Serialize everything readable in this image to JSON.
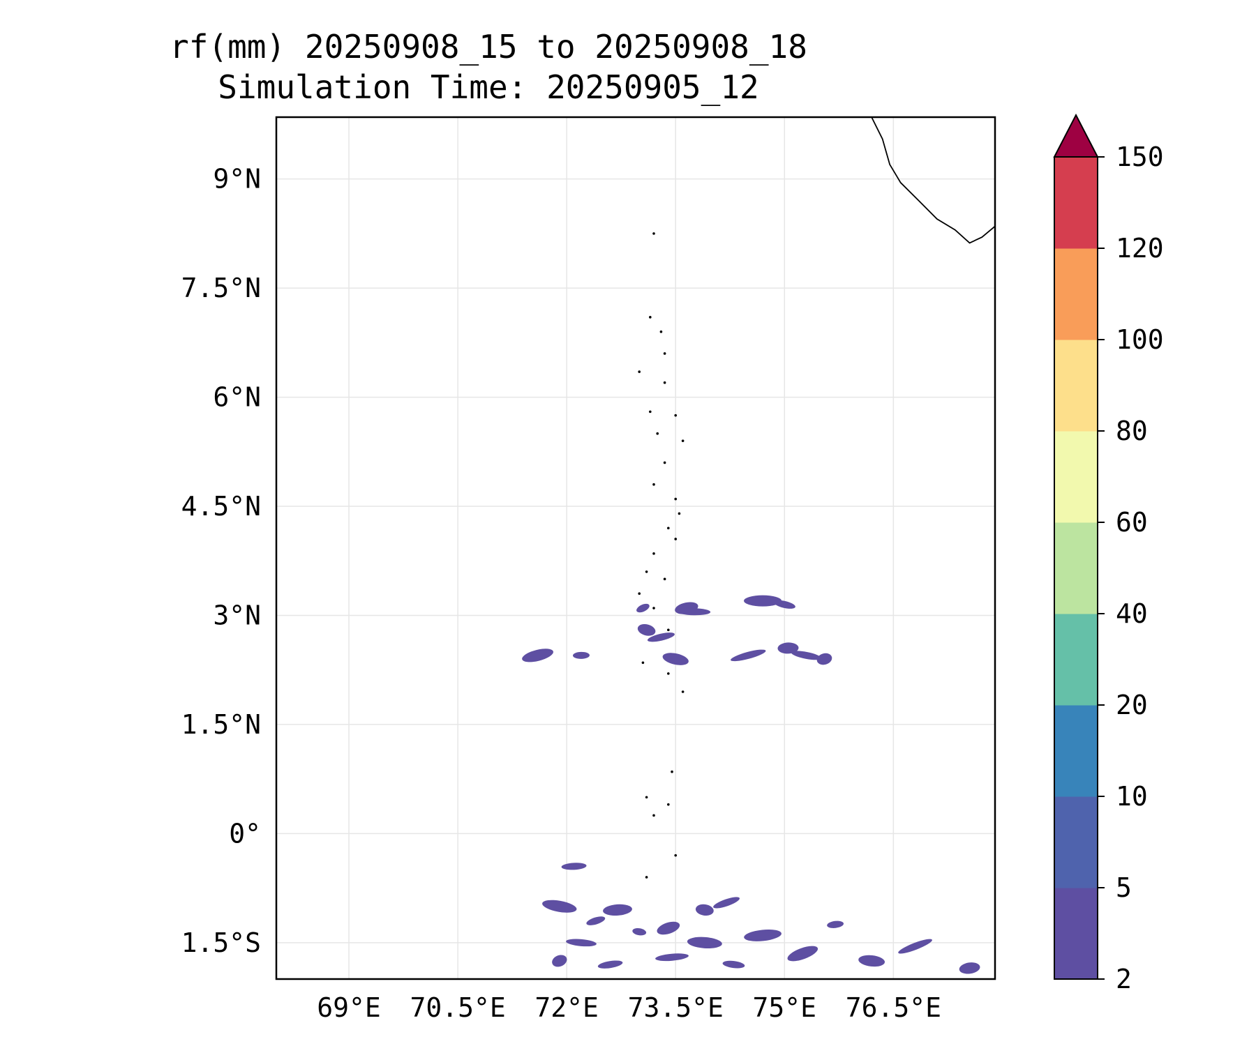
{
  "figure": {
    "title_line1": "rf(mm) 20250908_15 to 20250908_18",
    "title_line2": "Simulation Time: 20250905_12"
  },
  "map": {
    "extent": {
      "lon_min": 68.0,
      "lon_max": 77.9,
      "lat_min": -2.0,
      "lat_max": 9.85
    },
    "gridlines": true,
    "coastline_color": "#000000",
    "x_ticks": [
      {
        "value": 69.0,
        "label": "69°E"
      },
      {
        "value": 70.5,
        "label": "70.5°E"
      },
      {
        "value": 72.0,
        "label": "72°E"
      },
      {
        "value": 73.5,
        "label": "73.5°E"
      },
      {
        "value": 75.0,
        "label": "75°E"
      },
      {
        "value": 76.5,
        "label": "76.5°E"
      }
    ],
    "y_ticks": [
      {
        "value": 9.0,
        "label": "9°N"
      },
      {
        "value": 7.5,
        "label": "7.5°N"
      },
      {
        "value": 6.0,
        "label": "6°N"
      },
      {
        "value": 4.5,
        "label": "4.5°N"
      },
      {
        "value": 3.0,
        "label": "3°N"
      },
      {
        "value": 1.5,
        "label": "1.5°N"
      },
      {
        "value": 0.0,
        "label": "0°"
      },
      {
        "value": -1.5,
        "label": "1.5°S"
      }
    ],
    "india_coast": [
      [
        76.2,
        9.85
      ],
      [
        76.35,
        9.55
      ],
      [
        76.45,
        9.2
      ],
      [
        76.6,
        8.95
      ],
      [
        76.85,
        8.7
      ],
      [
        77.1,
        8.45
      ],
      [
        77.35,
        8.3
      ],
      [
        77.55,
        8.12
      ],
      [
        77.72,
        8.2
      ],
      [
        77.9,
        8.35
      ]
    ],
    "maldives_atolls": [
      [
        73.2,
        8.25
      ],
      [
        73.15,
        7.1
      ],
      [
        73.3,
        6.9
      ],
      [
        73.35,
        6.6
      ],
      [
        73.0,
        6.35
      ],
      [
        73.35,
        6.2
      ],
      [
        73.15,
        5.8
      ],
      [
        73.5,
        5.75
      ],
      [
        73.25,
        5.5
      ],
      [
        73.6,
        5.4
      ],
      [
        73.35,
        5.1
      ],
      [
        73.2,
        4.8
      ],
      [
        73.5,
        4.6
      ],
      [
        73.55,
        4.4
      ],
      [
        73.4,
        4.2
      ],
      [
        73.5,
        4.05
      ],
      [
        73.2,
        3.85
      ],
      [
        73.1,
        3.6
      ],
      [
        73.35,
        3.5
      ],
      [
        73.0,
        3.3
      ],
      [
        73.2,
        3.1
      ],
      [
        73.4,
        2.8
      ],
      [
        73.05,
        2.35
      ],
      [
        73.4,
        2.2
      ],
      [
        73.6,
        1.95
      ],
      [
        73.45,
        0.85
      ],
      [
        73.1,
        0.5
      ],
      [
        73.4,
        0.4
      ],
      [
        73.2,
        0.25
      ],
      [
        73.5,
        -0.3
      ],
      [
        73.1,
        -0.6
      ]
    ],
    "rain_patches": [
      [
        73.05,
        3.1
      ],
      [
        73.65,
        3.1
      ],
      [
        73.75,
        3.05
      ],
      [
        73.1,
        2.8
      ],
      [
        73.3,
        2.7
      ],
      [
        74.7,
        3.2
      ],
      [
        75.0,
        3.15
      ],
      [
        71.6,
        2.45
      ],
      [
        72.2,
        2.45
      ],
      [
        73.5,
        2.4
      ],
      [
        74.5,
        2.45
      ],
      [
        75.05,
        2.55
      ],
      [
        75.3,
        2.45
      ],
      [
        75.55,
        2.4
      ],
      [
        72.1,
        -0.45
      ],
      [
        71.9,
        -1.0
      ],
      [
        72.4,
        -1.2
      ],
      [
        72.7,
        -1.05
      ],
      [
        73.0,
        -1.35
      ],
      [
        73.4,
        -1.3
      ],
      [
        73.45,
        -1.7
      ],
      [
        73.9,
        -1.05
      ],
      [
        74.2,
        -0.95
      ],
      [
        74.7,
        -1.4
      ],
      [
        74.3,
        -1.8
      ],
      [
        75.25,
        -1.65
      ],
      [
        75.7,
        -1.25
      ],
      [
        76.2,
        -1.75
      ],
      [
        76.8,
        -1.55
      ],
      [
        77.55,
        -1.85
      ],
      [
        72.2,
        -1.5
      ],
      [
        71.9,
        -1.75
      ],
      [
        72.6,
        -1.8
      ],
      [
        73.9,
        -1.5
      ]
    ]
  },
  "colorbar": {
    "levels": [
      "2",
      "5",
      "10",
      "20",
      "40",
      "60",
      "80",
      "100",
      "120",
      "150"
    ],
    "colors": [
      "#5e4fa2",
      "#4f63ad",
      "#3884ba",
      "#65c0a8",
      "#bce4a0",
      "#f2f9ae",
      "#fddf8b",
      "#f99d59",
      "#d53e4f"
    ],
    "extend_color": "#9e0142"
  },
  "rain_color": "#5e4fa2"
}
